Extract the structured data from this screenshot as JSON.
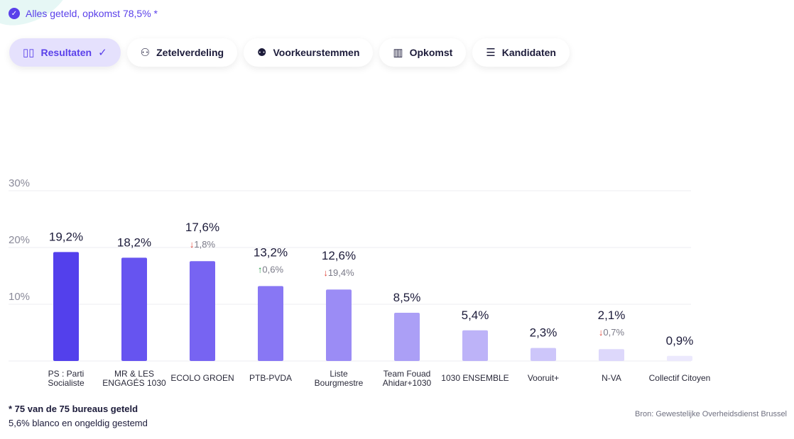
{
  "status": {
    "text": "Alles geteld, opkomst 78,5% *",
    "icon": "check-circle-icon"
  },
  "tabs": [
    {
      "label": "Resultaten",
      "icon": "bar-chart-icon",
      "active": true
    },
    {
      "label": "Zetelverdeling",
      "icon": "circles-icon"
    },
    {
      "label": "Voorkeurstemmen",
      "icon": "people-icon"
    },
    {
      "label": "Opkomst",
      "icon": "map-icon"
    },
    {
      "label": "Kandidaten",
      "icon": "list-icon"
    }
  ],
  "chart_data": {
    "type": "bar",
    "ylim": [
      0,
      30
    ],
    "yticks": [
      "10%",
      "20%",
      "30%"
    ],
    "categories": [
      [
        "PS : Parti",
        "Socialiste"
      ],
      [
        "MR & LES",
        "ENGAGÉS 1030"
      ],
      [
        "ECOLO GROEN"
      ],
      [
        "PTB-PVDA"
      ],
      [
        "Liste",
        "Bourgmestre"
      ],
      [
        "Team Fouad",
        "Ahidar+1030"
      ],
      [
        "1030 ENSEMBLE"
      ],
      [
        "Vooruit+"
      ],
      [
        "N-VA"
      ],
      [
        "Collectif Citoyen"
      ]
    ],
    "values": [
      19.2,
      18.2,
      17.6,
      13.2,
      12.6,
      8.5,
      5.4,
      2.3,
      2.1,
      0.9
    ],
    "value_labels": [
      "19,2%",
      "18,2%",
      "17,6%",
      "13,2%",
      "12,6%",
      "8,5%",
      "5,4%",
      "2,3%",
      "2,1%",
      "0,9%"
    ],
    "changes": [
      null,
      null,
      {
        "dir": "down",
        "label": "1,8%"
      },
      {
        "dir": "up",
        "label": "0,6%"
      },
      {
        "dir": "down",
        "label": "19,4%"
      },
      null,
      null,
      null,
      {
        "dir": "down",
        "label": "0,7%"
      },
      null
    ],
    "colors": [
      "#5340ec",
      "#6654f0",
      "#7764f2",
      "#8877f4",
      "#9b8cf5",
      "#ab9ff6",
      "#bdb3f8",
      "#cdc6fa",
      "#ddd8fb",
      "#ece9fd"
    ],
    "up_color": "#2e9e4f",
    "down_color": "#e0463a"
  },
  "footer": {
    "note": "* 75 van de 75 bureaus geteld",
    "blanco": "5,6% blanco en ongeldig gestemd",
    "source": "Bron: Gewestelijke Overheidsdienst Brussel"
  }
}
